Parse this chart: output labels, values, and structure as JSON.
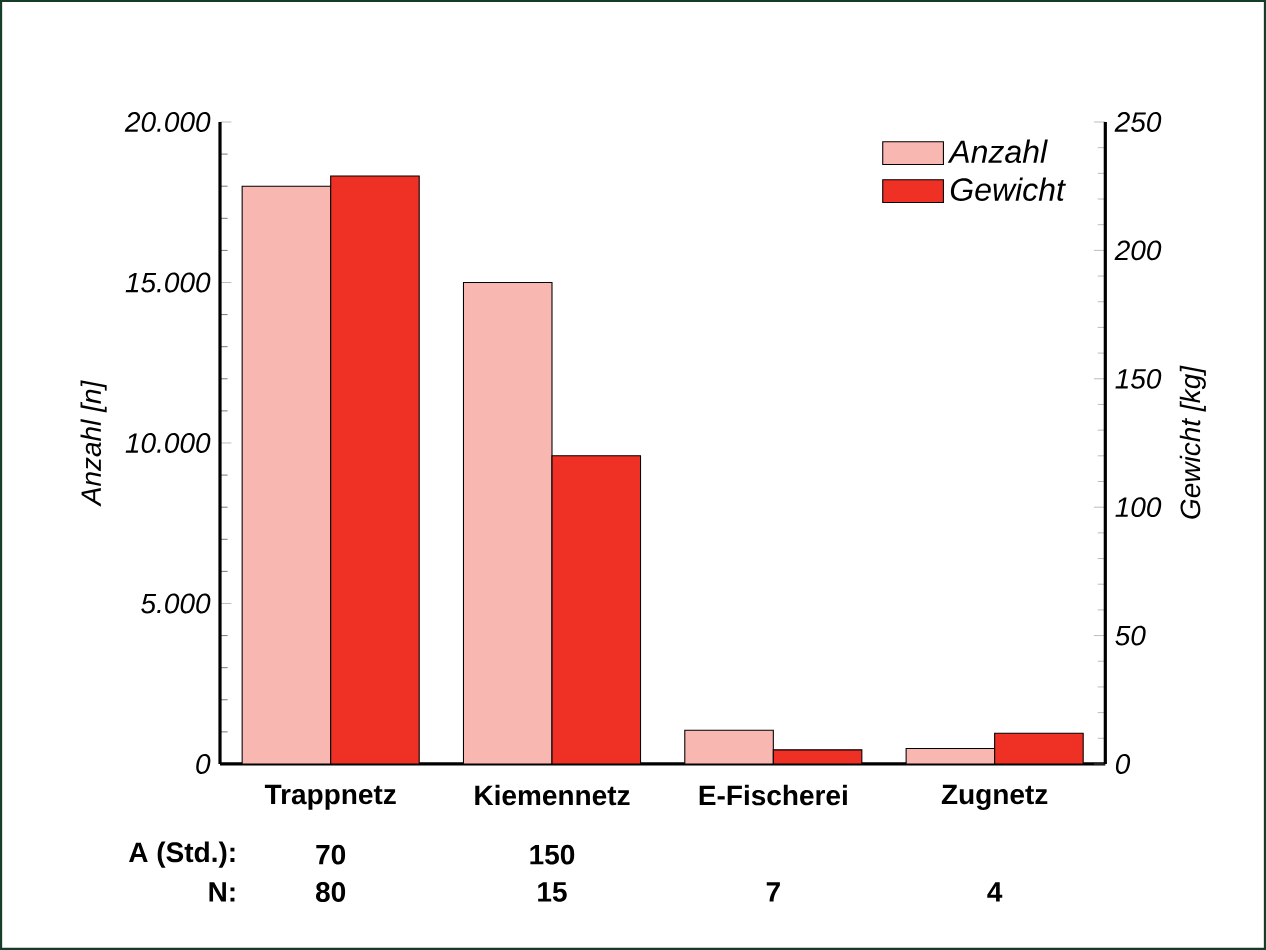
{
  "chart_data": {
    "type": "bar",
    "ylabel": "Anzahl [n]",
    "y2label": "Gewicht [kg]",
    "categories": [
      "Trappnetz",
      "Kiemennetz",
      "E-Fischerei",
      "Zugnetz"
    ],
    "series": [
      {
        "name": "Anzahl",
        "color": "#f9b7b2",
        "values": [
          18000,
          15000,
          1050,
          480
        ]
      },
      {
        "name": "Gewicht",
        "color": "#ee3124",
        "axis": "y2",
        "values": [
          229,
          120,
          5.5,
          12
        ]
      }
    ],
    "ylim": [
      0,
      20000
    ],
    "yticks": [
      0,
      {
        "value": 5000,
        "label": "5.000"
      },
      {
        "value": 10000,
        "label": "10.000"
      },
      {
        "value": 15000,
        "label": "15.000"
      },
      {
        "value": 20000,
        "label": "20.000"
      }
    ],
    "y2lim": [
      0,
      250
    ],
    "y2ticks": [
      0,
      50,
      100,
      150,
      200,
      250
    ],
    "legend": "top right",
    "grid": false,
    "annotations": [
      "A (Std.):",
      "70",
      "150",
      "N:",
      "80",
      "15",
      "7",
      "4"
    ]
  }
}
